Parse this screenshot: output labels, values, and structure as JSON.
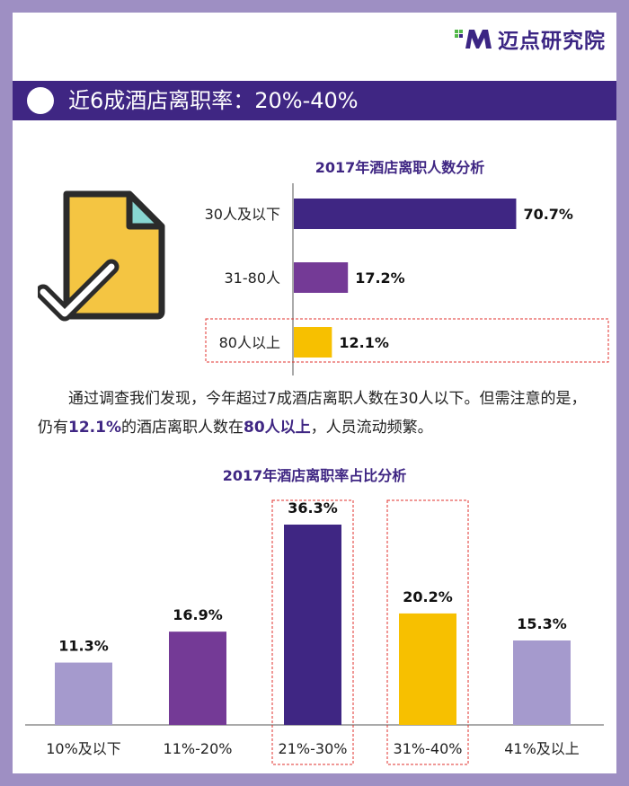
{
  "colors": {
    "frame": "#9e8fc3",
    "banner": "#3f2683",
    "title": "#3f2683",
    "highlight_box": "#e0312c"
  },
  "logo": {
    "text": "迈点研究院",
    "icon": "m-logo-icon"
  },
  "banner": {
    "title": "近6成酒店离职率：20%-40%",
    "icon": "white-dot-icon"
  },
  "illustration": {
    "icon": "document-check-icon"
  },
  "paragraph": {
    "part1": "通过调查我们发现，今年超过7成酒店离职人数在30人以下。但需注意的是，仍有",
    "hl1": "12.1%",
    "part2": "的酒店离职人数在",
    "hl2": "80人以上",
    "part3": "，人员流动频繁。"
  },
  "chart_data": [
    {
      "type": "bar",
      "orientation": "horizontal",
      "title": "2017年酒店离职人数分析",
      "categories": [
        "30人及以下",
        "31-80人",
        "80人以上"
      ],
      "values": [
        70.7,
        17.2,
        12.1
      ],
      "value_labels": [
        "70.7%",
        "17.2%",
        "12.1%"
      ],
      "colors": [
        "#3f2683",
        "#743a96",
        "#f7c000"
      ],
      "highlighted": [
        "80人以上"
      ],
      "xlim": [
        0,
        100
      ],
      "grid": false
    },
    {
      "type": "bar",
      "orientation": "vertical",
      "title": "2017年酒店离职率占比分析",
      "categories": [
        "10%及以下",
        "11%-20%",
        "21%-30%",
        "31%-40%",
        "41%及以上"
      ],
      "values": [
        11.3,
        16.9,
        36.3,
        20.2,
        15.3
      ],
      "value_labels": [
        "11.3%",
        "16.9%",
        "36.3%",
        "20.2%",
        "15.3%"
      ],
      "colors": [
        "#a59acd",
        "#743a96",
        "#3f2683",
        "#f7c000",
        "#a59acd"
      ],
      "highlighted": [
        "21%-30%",
        "31%-40%"
      ],
      "ylim": [
        0,
        40
      ],
      "grid": false
    }
  ]
}
